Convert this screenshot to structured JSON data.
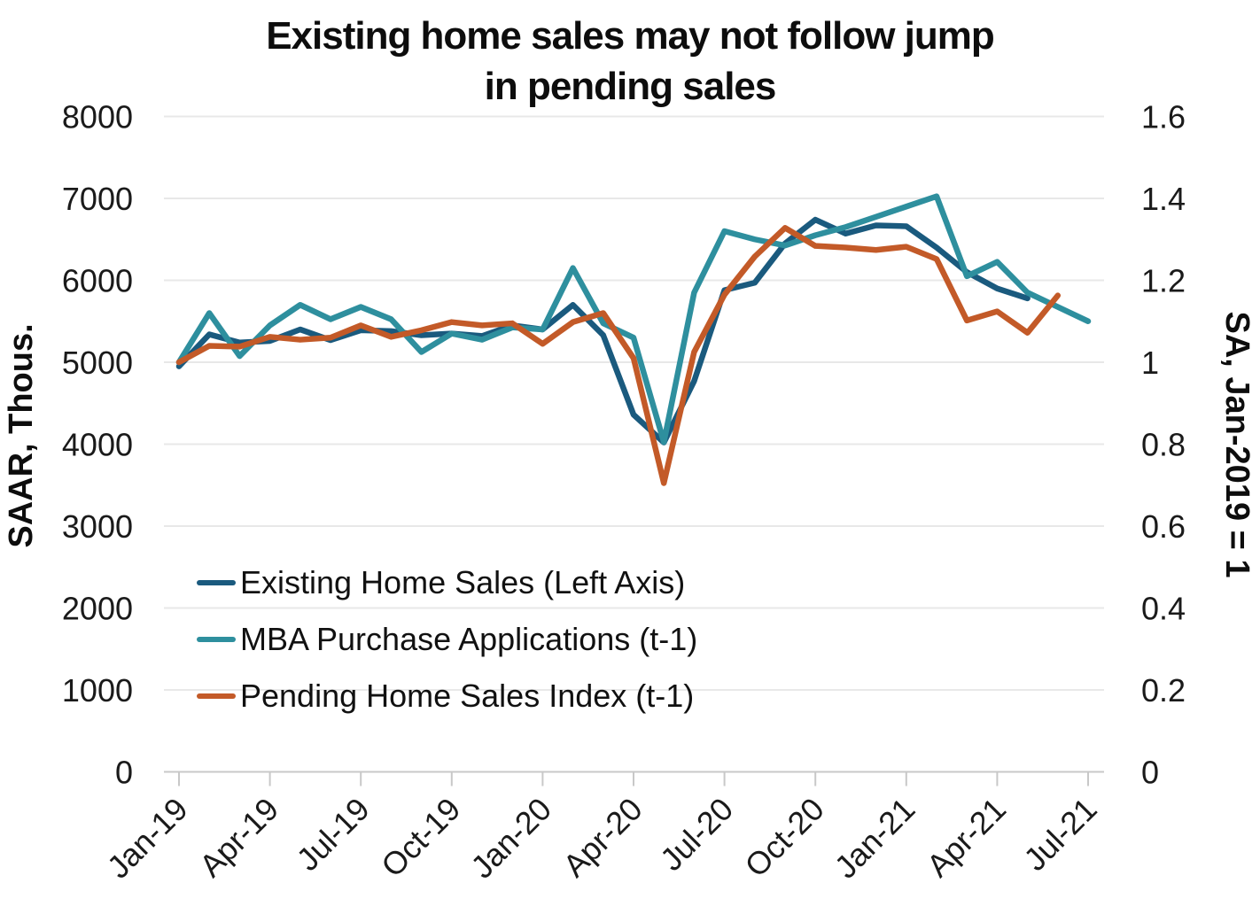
{
  "title": {
    "line1": "Existing home sales may not follow jump",
    "line2": "in pending sales"
  },
  "left_axis": {
    "label": "SAAR, Thous.",
    "ticks": [
      "8000",
      "7000",
      "6000",
      "5000",
      "4000",
      "3000",
      "2000",
      "1000",
      "0"
    ]
  },
  "right_axis": {
    "label": "SA, Jan-2019 = 1",
    "ticks": [
      "1.6",
      "1.4",
      "1.2",
      "1",
      "0.8",
      "0.6",
      "0.4",
      "0.2",
      "0"
    ]
  },
  "x_axis": {
    "tick_labels": [
      "Jan-19",
      "Apr-19",
      "Jul-19",
      "Oct-19",
      "Jan-20",
      "Apr-20",
      "Jul-20",
      "Oct-20",
      "Jan-21",
      "Apr-21",
      "Jul-21"
    ],
    "tick_month_indexes": [
      0,
      3,
      6,
      9,
      12,
      15,
      18,
      21,
      24,
      27,
      30
    ]
  },
  "legend": {
    "items": [
      {
        "label": "Existing Home Sales (Left Axis)",
        "color": "#1A5A7E"
      },
      {
        "label": "MBA Purchase Applications (t-1)",
        "color": "#2E8F9E"
      },
      {
        "label": "Pending Home Sales Index (t-1)",
        "color": "#C35A28"
      }
    ]
  },
  "colors": {
    "existing_home_sales": "#1A5A7E",
    "mba_purchase_applications": "#2E8F9E",
    "pending_home_sales": "#C35A28",
    "gridline": "#e8e8e8",
    "axis_line": "#c8c8c8",
    "text": "#111111"
  },
  "chart_data": {
    "type": "line",
    "title": "Existing home sales may not follow jump in pending sales",
    "x": [
      "Jan-19",
      "Feb-19",
      "Mar-19",
      "Apr-19",
      "May-19",
      "Jun-19",
      "Jul-19",
      "Aug-19",
      "Sep-19",
      "Oct-19",
      "Nov-19",
      "Dec-19",
      "Jan-20",
      "Feb-20",
      "Mar-20",
      "Apr-20",
      "May-20",
      "Jun-20",
      "Jul-20",
      "Aug-20",
      "Sep-20",
      "Oct-20",
      "Nov-20",
      "Dec-20",
      "Jan-21",
      "Feb-21",
      "Mar-21",
      "Apr-21",
      "May-21",
      "Jun-21",
      "Jul-21"
    ],
    "left_ylabel": "SAAR, Thous.",
    "right_ylabel": "SA, Jan-2019 = 1",
    "left_ylim": [
      0,
      8000
    ],
    "right_ylim": [
      0,
      1.6
    ],
    "grid": "horizontal",
    "legend_position": "inside-left",
    "series": [
      {
        "name": "Existing Home Sales (Left Axis)",
        "axis": "left",
        "color": "#1A5A7E",
        "values": [
          4950,
          5340,
          5240,
          5260,
          5400,
          5270,
          5390,
          5380,
          5330,
          5350,
          5320,
          5450,
          5400,
          5700,
          5330,
          4360,
          4020,
          4770,
          5880,
          5970,
          6450,
          6740,
          6570,
          6670,
          6660,
          6400,
          6100,
          5900,
          5780,
          null,
          null
        ]
      },
      {
        "name": "MBA Purchase Applications (t-1)",
        "axis": "right",
        "color": "#2E8F9E",
        "values": [
          1.0,
          1.12,
          1.015,
          1.09,
          1.14,
          1.105,
          1.135,
          1.105,
          1.025,
          1.07,
          1.055,
          1.085,
          1.08,
          1.23,
          1.095,
          1.06,
          0.805,
          1.17,
          1.32,
          1.3,
          1.285,
          1.31,
          1.33,
          1.355,
          1.38,
          1.405,
          1.21,
          1.245,
          1.17,
          1.135,
          1.1
        ]
      },
      {
        "name": "Pending Home Sales Index (t-1)",
        "axis": "right",
        "color": "#C35A28",
        "values": [
          1.0,
          1.04,
          1.038,
          1.062,
          1.055,
          1.06,
          1.09,
          1.062,
          1.078,
          1.098,
          1.09,
          1.095,
          1.045,
          1.098,
          1.12,
          1.01,
          0.705,
          1.025,
          1.165,
          1.258,
          1.328,
          1.284,
          1.28,
          1.274,
          1.282,
          1.252,
          1.102,
          1.124,
          1.072,
          1.163,
          null
        ]
      }
    ]
  }
}
